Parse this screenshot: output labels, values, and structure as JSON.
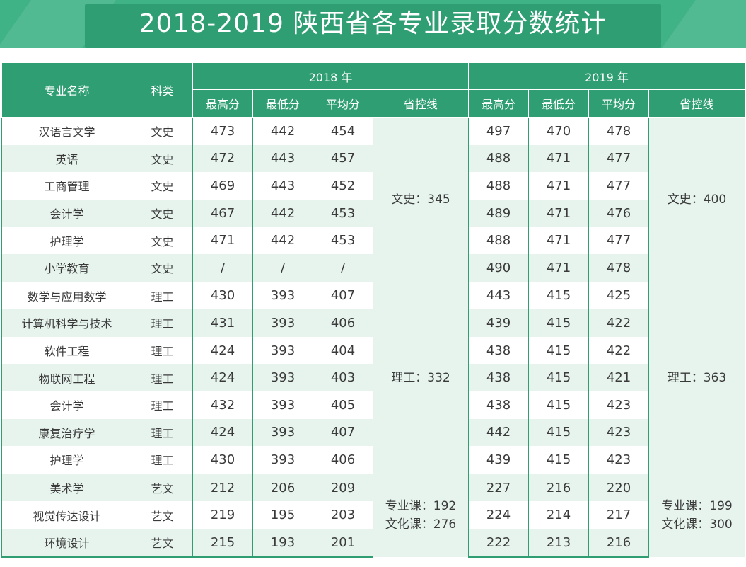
{
  "title": "2018-2019 陕西省各专业录取分数统计",
  "colors": {
    "header_green": "#2f9e73",
    "banner_green": "#3fb386",
    "stripe": "#e7f4ee"
  },
  "table": {
    "col_name": "专业名称",
    "col_category": "科类",
    "year_2018": "2018 年",
    "year_2019": "2019 年",
    "sub_max": "最高分",
    "sub_min": "最低分",
    "sub_avg": "平均分",
    "sub_ctrl": "省控线",
    "rows": [
      {
        "name": "汉语言文学",
        "cat": "文史",
        "a": [
          "473",
          "442",
          "454"
        ],
        "b": [
          "497",
          "470",
          "478"
        ]
      },
      {
        "name": "英语",
        "cat": "文史",
        "a": [
          "472",
          "443",
          "457"
        ],
        "b": [
          "488",
          "471",
          "477"
        ]
      },
      {
        "name": "工商管理",
        "cat": "文史",
        "a": [
          "469",
          "443",
          "452"
        ],
        "b": [
          "488",
          "471",
          "477"
        ]
      },
      {
        "name": "会计学",
        "cat": "文史",
        "a": [
          "467",
          "442",
          "453"
        ],
        "b": [
          "489",
          "471",
          "476"
        ]
      },
      {
        "name": "护理学",
        "cat": "文史",
        "a": [
          "471",
          "442",
          "453"
        ],
        "b": [
          "488",
          "471",
          "477"
        ]
      },
      {
        "name": "小学教育",
        "cat": "文史",
        "a": [
          "/",
          "/",
          "/"
        ],
        "b": [
          "490",
          "471",
          "478"
        ]
      },
      {
        "name": "数学与应用数学",
        "cat": "理工",
        "a": [
          "430",
          "393",
          "407"
        ],
        "b": [
          "443",
          "415",
          "425"
        ]
      },
      {
        "name": "计算机科学与技术",
        "cat": "理工",
        "a": [
          "431",
          "393",
          "406"
        ],
        "b": [
          "439",
          "415",
          "422"
        ]
      },
      {
        "name": "软件工程",
        "cat": "理工",
        "a": [
          "424",
          "393",
          "404"
        ],
        "b": [
          "438",
          "415",
          "422"
        ]
      },
      {
        "name": "物联网工程",
        "cat": "理工",
        "a": [
          "424",
          "393",
          "403"
        ],
        "b": [
          "438",
          "415",
          "421"
        ]
      },
      {
        "name": "会计学",
        "cat": "理工",
        "a": [
          "432",
          "393",
          "405"
        ],
        "b": [
          "438",
          "415",
          "423"
        ]
      },
      {
        "name": "康复治疗学",
        "cat": "理工",
        "a": [
          "424",
          "393",
          "407"
        ],
        "b": [
          "442",
          "415",
          "423"
        ]
      },
      {
        "name": "护理学",
        "cat": "理工",
        "a": [
          "430",
          "393",
          "406"
        ],
        "b": [
          "439",
          "415",
          "423"
        ]
      },
      {
        "name": "美术学",
        "cat": "艺文",
        "a": [
          "212",
          "206",
          "209"
        ],
        "b": [
          "227",
          "216",
          "220"
        ]
      },
      {
        "name": "视觉传达设计",
        "cat": "艺文",
        "a": [
          "219",
          "195",
          "203"
        ],
        "b": [
          "224",
          "214",
          "217"
        ]
      },
      {
        "name": "环境设计",
        "cat": "艺文",
        "a": [
          "215",
          "193",
          "201"
        ],
        "b": [
          "222",
          "213",
          "216"
        ]
      }
    ],
    "ctrl_2018": {
      "wenshi": "文史：345",
      "ligong": "理工：332",
      "yiwen_major": "专业课：192",
      "yiwen_culture": "文化课：276"
    },
    "ctrl_2019": {
      "wenshi": "文史：400",
      "ligong": "理工：363",
      "yiwen_major": "专业课：199",
      "yiwen_culture": "文化课：300"
    }
  }
}
